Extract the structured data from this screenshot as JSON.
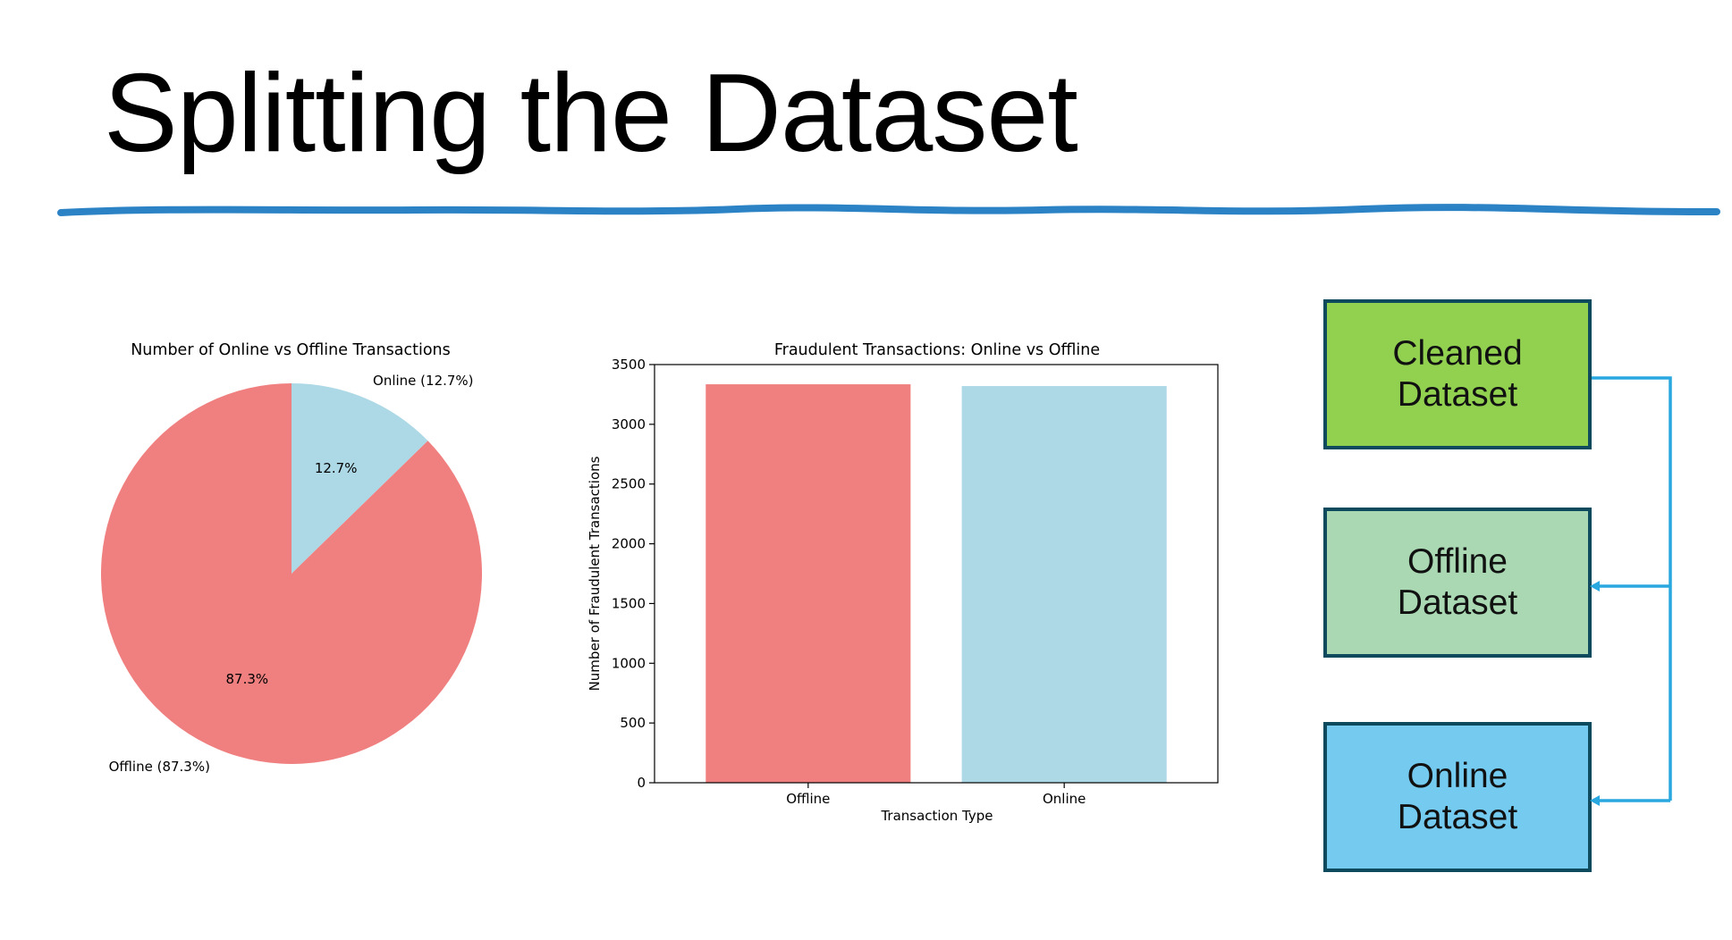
{
  "slide": {
    "title": "Splitting the Dataset"
  },
  "chart_data": [
    {
      "type": "pie",
      "title": "Number of Online vs Offline Transactions",
      "labels": [
        "Online (12.7%)",
        "Offline (87.3%)"
      ],
      "values": [
        12.7,
        87.3
      ],
      "pct_labels": [
        "12.7%",
        "87.3%"
      ],
      "colors": [
        "#add8e6",
        "#f08080"
      ]
    },
    {
      "type": "bar",
      "title": "Fraudulent Transactions: Online vs Offline",
      "categories": [
        "Offline",
        "Online"
      ],
      "values": [
        3335,
        3320
      ],
      "colors": [
        "#f08080",
        "#add8e6"
      ],
      "xlabel": "Transaction Type",
      "ylabel": "Number of Fraudulent Transactions",
      "ylim": [
        0,
        3500
      ],
      "yticks": [
        0,
        500,
        1000,
        1500,
        2000,
        2500,
        3000,
        3500
      ]
    }
  ],
  "flow": {
    "boxes": [
      {
        "label": "Cleaned\nDataset",
        "color": "#92d050"
      },
      {
        "label": "Offline\nDataset",
        "color": "#a9d8b3"
      },
      {
        "label": "Online\nDataset",
        "color": "#74cbef"
      }
    ],
    "arrow_color": "#29a8df"
  },
  "colors": {
    "divider": "#2b83c6",
    "box_border": "#0d4a5e"
  }
}
